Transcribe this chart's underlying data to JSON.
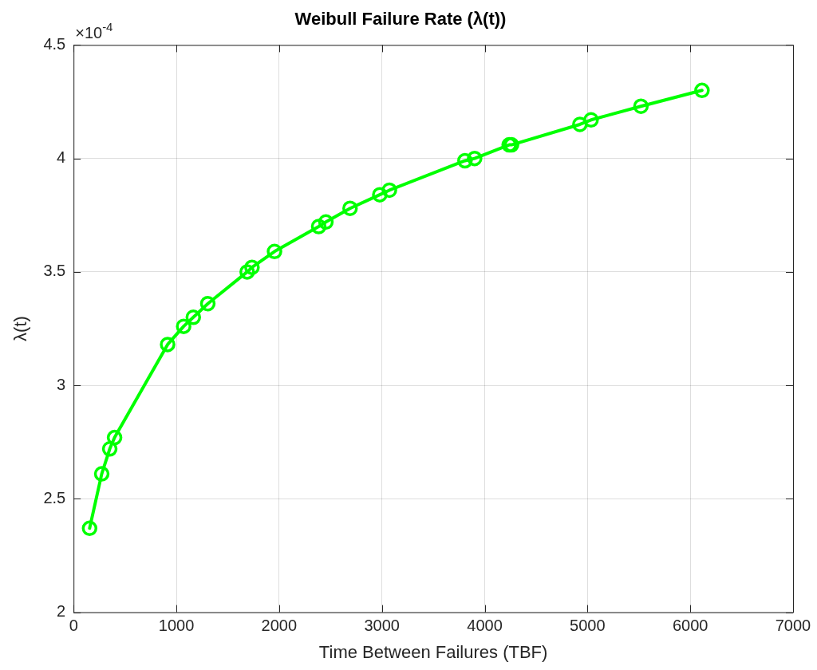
{
  "chart_data": {
    "type": "line",
    "title": "Weibull Failure Rate (λ(t))",
    "xlabel": "Time Between Failures (TBF)",
    "ylabel": "λ(t)",
    "annotations": [
      "×10$^{-4}$"
    ],
    "x": [
      156,
      274,
      352,
      399,
      915,
      1071,
      1165,
      1306,
      1689,
      1736,
      1955,
      2385,
      2455,
      2690,
      2979,
      3073,
      3808,
      3902,
      4238,
      4261,
      4926,
      5035,
      5520,
      6114
    ],
    "series": [
      {
        "color": "#00ff00",
        "values": [
          2.37,
          2.61,
          2.72,
          2.77,
          3.18,
          3.26,
          3.3,
          3.36,
          3.5,
          3.52,
          3.59,
          3.7,
          3.72,
          3.78,
          3.84,
          3.86,
          3.99,
          4.0,
          4.06,
          4.06,
          4.15,
          4.17,
          4.23,
          4.3
        ]
      }
    ],
    "xlim": [
      0,
      7000
    ],
    "xticks": [
      0,
      1000,
      2000,
      3000,
      4000,
      5000,
      6000,
      7000
    ],
    "ylim": [
      2,
      4.5
    ],
    "yticks": [
      2,
      2.5,
      3,
      3.5,
      4,
      4.5
    ],
    "grid": true,
    "legend": false,
    "marker": "circle",
    "line_style": "solid"
  }
}
